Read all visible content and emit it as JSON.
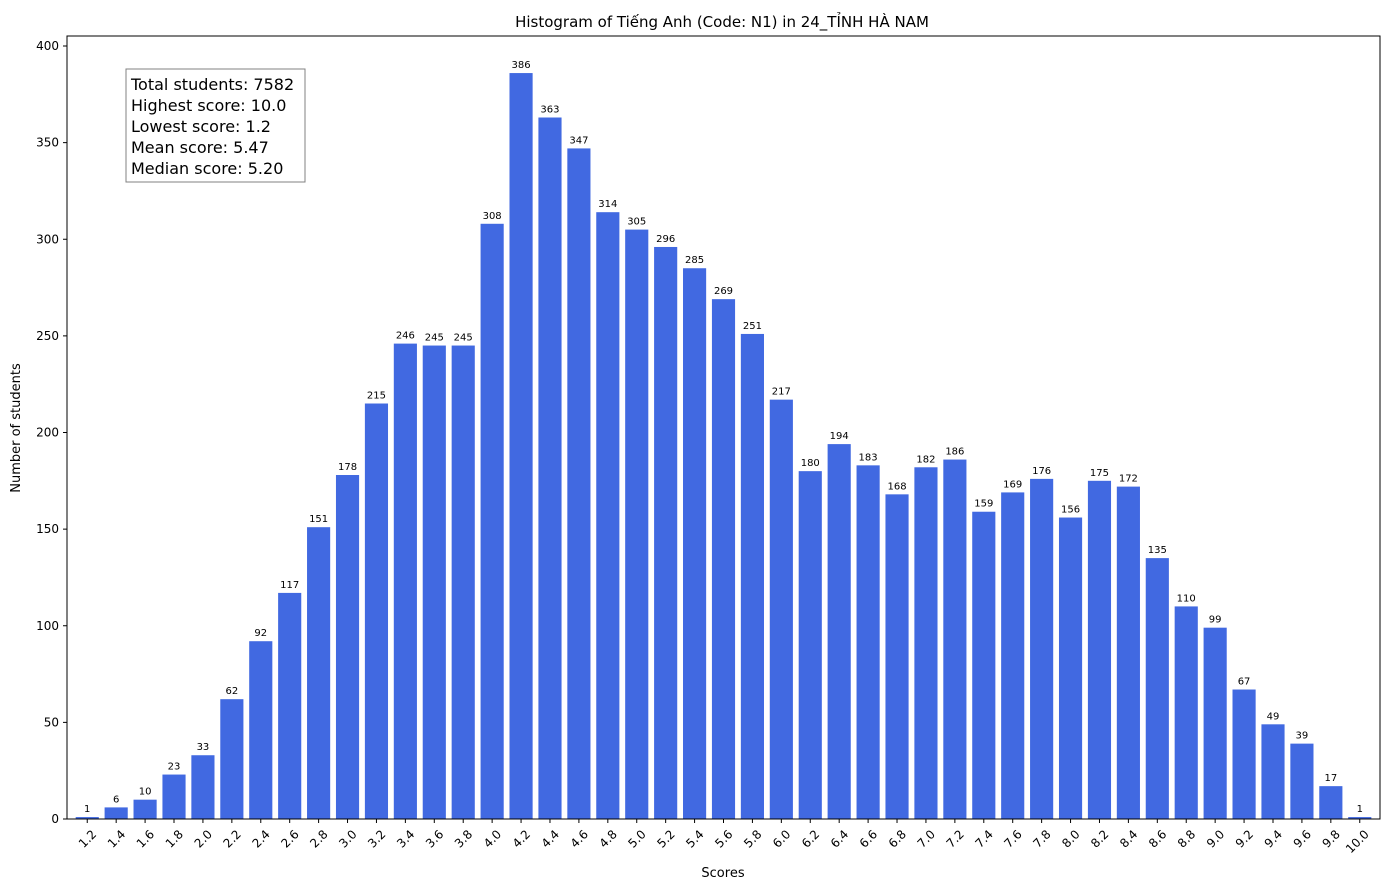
{
  "chart_data": {
    "type": "bar",
    "title": "Histogram of Tiếng Anh (Code: N1) in 24_TỈNH HÀ NAM",
    "xlabel": "Scores",
    "ylabel": "Number of students",
    "ylim": [
      0,
      400
    ],
    "yticks": [
      "0",
      "50",
      "100",
      "150",
      "200",
      "250",
      "300",
      "350",
      "400"
    ],
    "bar_color": "#4169e1",
    "categories": [
      "1.2",
      "1.4",
      "1.6",
      "1.8",
      "2.0",
      "2.2",
      "2.4",
      "2.6",
      "2.8",
      "3.0",
      "3.2",
      "3.4",
      "3.6",
      "3.8",
      "4.0",
      "4.2",
      "4.4",
      "4.6",
      "4.8",
      "5.0",
      "5.2",
      "5.4",
      "5.6",
      "5.8",
      "6.0",
      "6.2",
      "6.4",
      "6.6",
      "6.8",
      "7.0",
      "7.2",
      "7.4",
      "7.6",
      "7.8",
      "8.0",
      "8.2",
      "8.4",
      "8.6",
      "8.8",
      "9.0",
      "9.2",
      "9.4",
      "9.6",
      "9.8",
      "10.0"
    ],
    "values": [
      1,
      6,
      10,
      23,
      33,
      62,
      92,
      117,
      151,
      178,
      215,
      246,
      245,
      245,
      308,
      386,
      363,
      347,
      314,
      305,
      296,
      285,
      269,
      251,
      217,
      180,
      194,
      183,
      168,
      182,
      186,
      159,
      169,
      176,
      156,
      175,
      172,
      135,
      110,
      99,
      67,
      49,
      39,
      17,
      1
    ],
    "stats": [
      "Total students: 7582",
      "Highest score: 10.0",
      "Lowest score: 1.2",
      "Mean score: 5.47",
      "Median score: 5.20"
    ]
  }
}
